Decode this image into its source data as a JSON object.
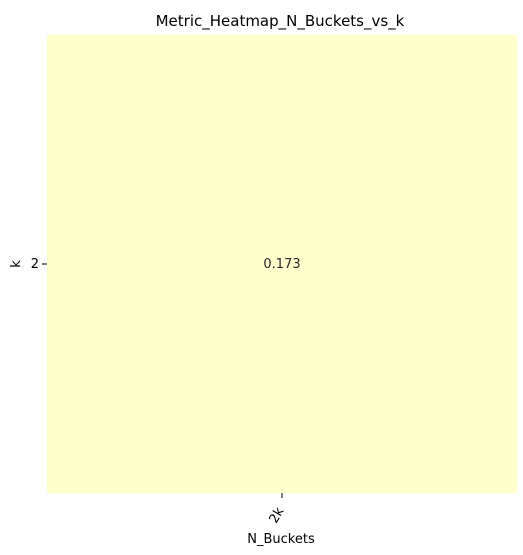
{
  "chart_data": {
    "type": "heatmap",
    "title": "Metric_Heatmap_N_Buckets_vs_k",
    "xlabel": "N_Buckets",
    "ylabel": "k",
    "x_categories": [
      "2k"
    ],
    "y_categories": [
      "2"
    ],
    "values": [
      [
        0.173
      ]
    ],
    "value_labels": [
      [
        "0.173"
      ]
    ],
    "colors": {
      "cell": "#ffffcc"
    },
    "grid": false,
    "colorbar": false
  }
}
